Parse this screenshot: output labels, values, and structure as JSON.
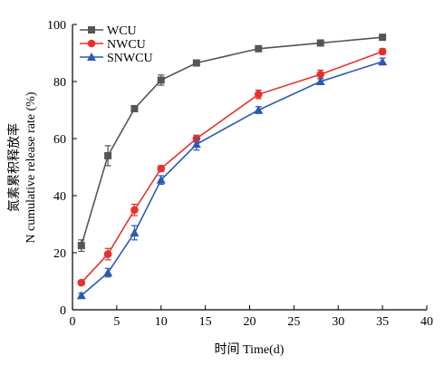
{
  "chart_data": {
    "type": "line",
    "xlabel": "时间 Time(d)",
    "ylabel_cn": "氮素累积释放率",
    "ylabel_en": "N cumulative release rate (%)",
    "xlim": [
      0,
      40
    ],
    "ylim": [
      0,
      100
    ],
    "x_ticks": [
      "0",
      "5",
      "10",
      "15",
      "20",
      "25",
      "30",
      "35",
      "40"
    ],
    "y_ticks": [
      "0",
      "20",
      "40",
      "60",
      "80",
      "100"
    ],
    "grid": false,
    "legend_position": "top-left",
    "x": [
      1,
      4,
      7,
      10,
      14,
      21,
      28,
      35
    ],
    "series": [
      {
        "name": "WCU",
        "color": "#555555",
        "marker": "square",
        "values": [
          22.5,
          54,
          70.5,
          80.5,
          86.5,
          91.5,
          93.5,
          95.5
        ],
        "errors": [
          2,
          3.5,
          1,
          1.8,
          1,
          0.8,
          1,
          1
        ]
      },
      {
        "name": "NWCU",
        "color": "#e8302a",
        "marker": "circle",
        "values": [
          9.5,
          19.5,
          35,
          49.5,
          60,
          75.5,
          82.5,
          90.5
        ],
        "errors": [
          0.8,
          2,
          2,
          1,
          1.2,
          1.5,
          1.5,
          1
        ]
      },
      {
        "name": "SNWCU",
        "color": "#2b5ab5",
        "marker": "triangle",
        "values": [
          5,
          13,
          27,
          45.5,
          58,
          70,
          80,
          87
        ],
        "errors": [
          0.8,
          1.5,
          2.5,
          1.5,
          2,
          1.2,
          1,
          1.2
        ]
      }
    ]
  }
}
